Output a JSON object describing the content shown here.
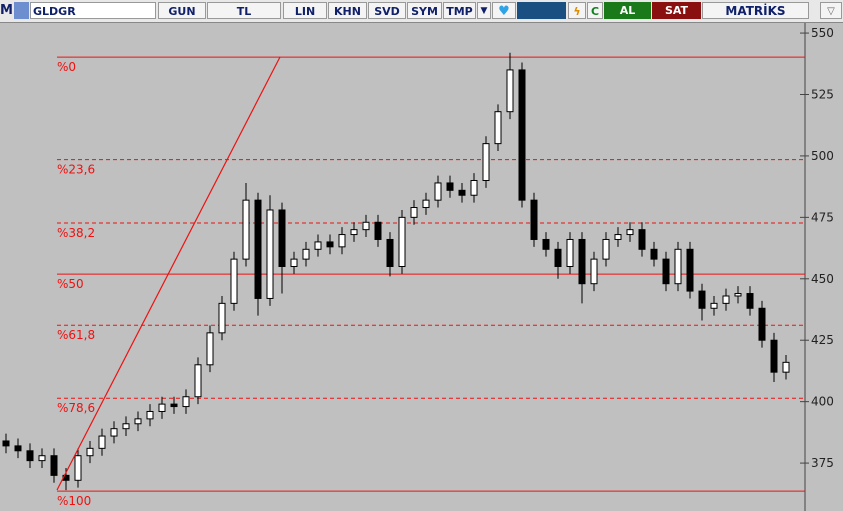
{
  "toolbar": {
    "buttons": [
      "M",
      "GLDGR",
      "GUN",
      "TL",
      "LIN",
      "KHN",
      "SVD",
      "SYM",
      "TMP",
      "C",
      "AL",
      "SAT",
      "MATRİKS"
    ]
  },
  "chart_data": {
    "type": "candlestick",
    "open": [
      384,
      382,
      380,
      376,
      378,
      370,
      368,
      378,
      381,
      386,
      389,
      391,
      393,
      396,
      399,
      398,
      402,
      415,
      428,
      440,
      458,
      482,
      442,
      478,
      455,
      458,
      462,
      465,
      463,
      468,
      470,
      473,
      466,
      455,
      475,
      479,
      482,
      489,
      486,
      484,
      490,
      505,
      518,
      535,
      482,
      466,
      462,
      455,
      466,
      448,
      458,
      466,
      468,
      470,
      462,
      458,
      448,
      462,
      445,
      438,
      440,
      443,
      444,
      438,
      425,
      412
    ],
    "high": [
      387,
      385,
      383,
      381,
      381,
      373,
      381,
      384,
      389,
      392,
      394,
      396,
      399,
      402,
      402,
      405,
      418,
      431,
      443,
      461,
      489,
      485,
      484,
      481,
      461,
      465,
      468,
      468,
      471,
      473,
      476,
      476,
      469,
      478,
      482,
      485,
      492,
      492,
      489,
      493,
      508,
      521,
      542,
      538,
      485,
      469,
      465,
      469,
      469,
      461,
      469,
      471,
      473,
      473,
      465,
      461,
      465,
      465,
      448,
      443,
      446,
      447,
      447,
      441,
      428,
      419
    ],
    "low": [
      379,
      377,
      373,
      373,
      367,
      364,
      365,
      375,
      378,
      383,
      386,
      388,
      390,
      393,
      395,
      395,
      399,
      412,
      425,
      437,
      455,
      435,
      439,
      444,
      452,
      455,
      459,
      460,
      460,
      465,
      467,
      463,
      451,
      452,
      472,
      476,
      479,
      483,
      481,
      481,
      487,
      502,
      515,
      479,
      463,
      459,
      450,
      452,
      440,
      445,
      455,
      463,
      465,
      459,
      455,
      445,
      445,
      442,
      433,
      435,
      437,
      440,
      435,
      422,
      408,
      409
    ],
    "close": [
      382,
      380,
      376,
      378,
      370,
      368,
      378,
      381,
      386,
      389,
      391,
      393,
      396,
      399,
      398,
      402,
      415,
      428,
      440,
      458,
      482,
      442,
      478,
      455,
      458,
      462,
      465,
      463,
      468,
      470,
      473,
      466,
      455,
      475,
      479,
      482,
      489,
      486,
      484,
      490,
      505,
      518,
      535,
      482,
      466,
      462,
      455,
      466,
      448,
      458,
      466,
      468,
      470,
      462,
      458,
      448,
      462,
      445,
      438,
      440,
      443,
      444,
      438,
      425,
      412,
      416
    ],
    "up_color": "#ffffff",
    "down_color": "#000000",
    "ylim": [
      355.5,
      554.5
    ],
    "yticks": [
      375,
      400,
      425,
      450,
      475,
      500,
      525,
      550
    ],
    "fib_color": "#ee1111",
    "fib_levels": [
      {
        "label": "%0",
        "value": 540.2,
        "style": "solid"
      },
      {
        "label": "%23,6",
        "value": 498.5,
        "style": "dashed"
      },
      {
        "label": "%38,2",
        "value": 472.7,
        "style": "dashed"
      },
      {
        "label": "%50",
        "value": 451.9,
        "style": "solid"
      },
      {
        "label": "%61,8",
        "value": 431.1,
        "style": "dashed"
      },
      {
        "label": "%78,6",
        "value": 401.4,
        "style": "dashed"
      },
      {
        "label": "%100",
        "value": 363.6,
        "style": "solid"
      }
    ]
  }
}
